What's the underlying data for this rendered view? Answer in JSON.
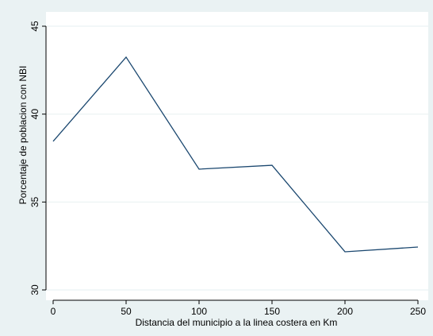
{
  "chart_data": {
    "type": "line",
    "x_label": "Distancia del municipio a la linea costera en Km",
    "y_label": "Porcentaje de poblacion con NBI",
    "x": [
      0,
      50,
      100,
      150,
      200,
      250
    ],
    "series": [
      {
        "name": "NBI",
        "color": "#1a476f",
        "values": [
          38.45,
          43.24,
          36.87,
          37.09,
          32.17,
          32.44
        ]
      }
    ],
    "xlim": [
      0,
      250
    ],
    "ylim": [
      30,
      45
    ],
    "xticks": [
      0,
      50,
      100,
      150,
      200,
      250
    ],
    "yticks": [
      30,
      35,
      40,
      45
    ],
    "grid": true
  }
}
